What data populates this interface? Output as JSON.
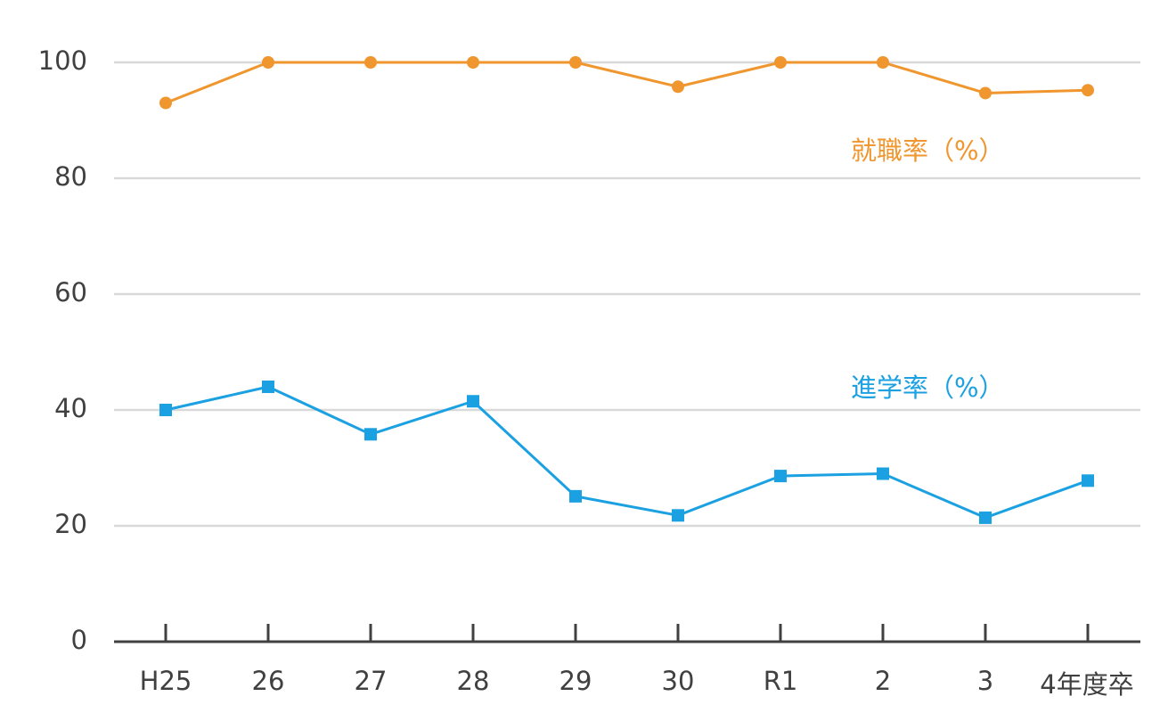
{
  "chart_data": {
    "type": "line",
    "categories": [
      "H25",
      "26",
      "27",
      "28",
      "29",
      "30",
      "R1",
      "2",
      "3",
      "4年度卒"
    ],
    "ylim": [
      0,
      100
    ],
    "yticks": [
      0,
      20,
      40,
      60,
      80,
      100
    ],
    "grid": true,
    "series": [
      {
        "name": "就職率（%）",
        "color": "#f0962e",
        "marker": "circle",
        "values": [
          93,
          100,
          100,
          100,
          100,
          95.8,
          100,
          100,
          94.7,
          95.2
        ]
      },
      {
        "name": "進学率（%）",
        "color": "#1ba1e2",
        "marker": "square",
        "values": [
          40,
          44,
          35.8,
          41.5,
          25.1,
          21.8,
          28.6,
          29,
          21.4,
          27.8
        ]
      }
    ]
  }
}
